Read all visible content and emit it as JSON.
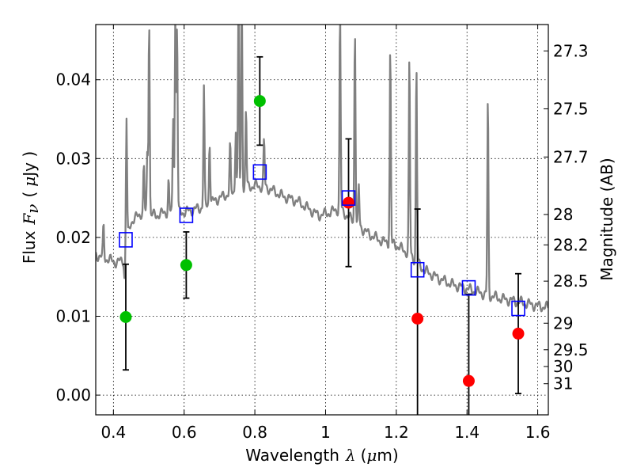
{
  "chart_data": {
    "type": "scatter",
    "title": "",
    "xlabel": {
      "text": "Wavelength",
      "symbol": "λ",
      "unit_open": "(",
      "unit_mu": "μ",
      "unit_rest": "m)"
    },
    "ylabel": {
      "text": "Flux",
      "symbol": "F",
      "subscript": "ν",
      "unit_open": "(",
      "unit_mu": "μ",
      "unit_rest": "Jy )"
    },
    "ylabel_right": "Magnitude (AB)",
    "xlim": [
      0.35,
      1.63
    ],
    "ylim": [
      -0.0025,
      0.047
    ],
    "grid": true,
    "x_ticks": [
      {
        "value": 0.4,
        "label": "0.4"
      },
      {
        "value": 0.6,
        "label": "0.6"
      },
      {
        "value": 0.8,
        "label": "0.8"
      },
      {
        "value": 1.0,
        "label": "1"
      },
      {
        "value": 1.2,
        "label": "1.2"
      },
      {
        "value": 1.4,
        "label": "1.4"
      },
      {
        "value": 1.6,
        "label": "1.6"
      }
    ],
    "y_ticks": [
      {
        "value": 0.0,
        "label": "0.00"
      },
      {
        "value": 0.01,
        "label": "0.01"
      },
      {
        "value": 0.02,
        "label": "0.02"
      },
      {
        "value": 0.03,
        "label": "0.03"
      },
      {
        "value": 0.04,
        "label": "0.04"
      }
    ],
    "mag_ticks": [
      {
        "value": 27.3,
        "label": "27.3"
      },
      {
        "value": 27.5,
        "label": "27.5"
      },
      {
        "value": 27.7,
        "label": "27.7"
      },
      {
        "value": 28,
        "label": "28"
      },
      {
        "value": 28.2,
        "label": "28.2"
      },
      {
        "value": 28.5,
        "label": "28.5"
      },
      {
        "value": 29,
        "label": "29"
      },
      {
        "value": 29.5,
        "label": "29.5"
      },
      {
        "value": 30,
        "label": "30"
      },
      {
        "value": 31,
        "label": "31"
      }
    ],
    "series": [
      {
        "name": "observed_detected",
        "color": "#00c000",
        "points": [
          {
            "x": 0.435,
            "y": 0.0099,
            "err": 0.0067
          },
          {
            "x": 0.606,
            "y": 0.0165,
            "err": 0.0042
          },
          {
            "x": 0.814,
            "y": 0.0373,
            "err": 0.0056
          }
        ]
      },
      {
        "name": "observed_ir",
        "color": "#ff0000",
        "points": [
          {
            "x": 1.065,
            "y": 0.0244,
            "err": 0.0081
          },
          {
            "x": 1.26,
            "y": 0.0097,
            "err": 0.0139
          },
          {
            "x": 1.405,
            "y": 0.0018,
            "err": 0.011
          },
          {
            "x": 1.545,
            "y": 0.0078,
            "err": 0.0076
          }
        ]
      },
      {
        "name": "model_photometry",
        "color": "#0000ff",
        "points": [
          {
            "x": 0.435,
            "y": 0.0197
          },
          {
            "x": 0.606,
            "y": 0.0228
          },
          {
            "x": 0.814,
            "y": 0.0283
          },
          {
            "x": 1.065,
            "y": 0.025
          },
          {
            "x": 1.26,
            "y": 0.0159
          },
          {
            "x": 1.405,
            "y": 0.0136
          },
          {
            "x": 1.545,
            "y": 0.011
          }
        ]
      }
    ],
    "spectrum": {
      "color": "#808080",
      "continuum": [
        [
          0.35,
          0.0178
        ],
        [
          0.38,
          0.0173
        ],
        [
          0.41,
          0.0168
        ],
        [
          0.43,
          0.0172
        ],
        [
          0.44,
          0.02
        ],
        [
          0.45,
          0.022
        ],
        [
          0.48,
          0.0231
        ],
        [
          0.52,
          0.0228
        ],
        [
          0.55,
          0.0232
        ],
        [
          0.6,
          0.0232
        ],
        [
          0.65,
          0.0238
        ],
        [
          0.7,
          0.025
        ],
        [
          0.75,
          0.026
        ],
        [
          0.8,
          0.0266
        ],
        [
          0.84,
          0.0262
        ],
        [
          0.88,
          0.0252
        ],
        [
          0.92,
          0.0246
        ],
        [
          0.95,
          0.0237
        ],
        [
          0.98,
          0.0228
        ],
        [
          1.0,
          0.023
        ],
        [
          1.04,
          0.0236
        ],
        [
          1.08,
          0.022
        ],
        [
          1.12,
          0.0205
        ],
        [
          1.16,
          0.0195
        ],
        [
          1.2,
          0.019
        ],
        [
          1.24,
          0.0178
        ],
        [
          1.28,
          0.0158
        ],
        [
          1.32,
          0.0148
        ],
        [
          1.36,
          0.014
        ],
        [
          1.4,
          0.0135
        ],
        [
          1.45,
          0.0128
        ],
        [
          1.5,
          0.0122
        ],
        [
          1.55,
          0.0118
        ],
        [
          1.6,
          0.0113
        ],
        [
          1.63,
          0.0111
        ]
      ],
      "lines": [
        [
          0.372,
          0.004
        ],
        [
          0.432,
          -0.003
        ],
        [
          0.437,
          0.016
        ],
        [
          0.486,
          0.006
        ],
        [
          0.496,
          0.008
        ],
        [
          0.501,
          0.025
        ],
        [
          0.556,
          0.004
        ],
        [
          0.569,
          0.012
        ],
        [
          0.575,
          0.025
        ],
        [
          0.58,
          0.024
        ],
        [
          0.656,
          0.015
        ],
        [
          0.672,
          0.008
        ],
        [
          0.73,
          0.006
        ],
        [
          0.746,
          0.008
        ],
        [
          0.754,
          0.025
        ],
        [
          0.763,
          0.025
        ],
        [
          0.775,
          0.01
        ],
        [
          0.826,
          0.006
        ],
        [
          1.041,
          0.025
        ],
        [
          1.083,
          0.025
        ],
        [
          1.094,
          0.005
        ],
        [
          1.183,
          0.025
        ],
        [
          1.237,
          0.025
        ],
        [
          1.257,
          0.025
        ],
        [
          1.459,
          0.025
        ]
      ]
    }
  }
}
